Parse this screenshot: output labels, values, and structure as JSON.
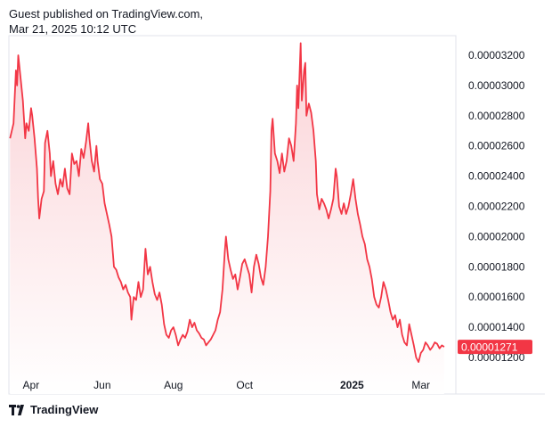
{
  "header": {
    "line1": "Guest published on TradingView.com,",
    "line2": "Mar 21, 2025 10:12 UTC"
  },
  "footer": {
    "brand": "TradingView"
  },
  "colors": {
    "line": "#f23645",
    "fill_top": "#fbd3d7",
    "fill_bottom": "#ffffff",
    "label_bg": "#f23645",
    "axis_text": "#131722"
  },
  "chart_data": {
    "type": "area",
    "title": "",
    "xlabel": "",
    "ylabel": "",
    "x_ticks": [
      {
        "label": "Apr",
        "x": "2024-04-01",
        "bold": false
      },
      {
        "label": "Jun",
        "x": "2024-06-01",
        "bold": false
      },
      {
        "label": "Aug",
        "x": "2024-08-01",
        "bold": false
      },
      {
        "label": "Oct",
        "x": "2024-10-01",
        "bold": false
      },
      {
        "label": "2025",
        "x": "2025-01-01",
        "bold": true
      },
      {
        "label": "Mar",
        "x": "2025-03-01",
        "bold": false
      }
    ],
    "y_ticks": [
      "0.00003200",
      "0.00003000",
      "0.00002800",
      "0.00002600",
      "0.00002400",
      "0.00002200",
      "0.00002000",
      "0.00001800",
      "0.00001600",
      "0.00001400",
      "0.00001200"
    ],
    "ylim": [
      1.12e-05,
      3.32e-05
    ],
    "xlim": [
      "2024-03-13",
      "2025-03-31"
    ],
    "last_value_label": "0.00001271",
    "series": [
      {
        "values": [
          [
            "2024-03-14",
            2.65e-05
          ],
          [
            "2024-03-17",
            2.75e-05
          ],
          [
            "2024-03-19",
            3.1e-05
          ],
          [
            "2024-03-20",
            3e-05
          ],
          [
            "2024-03-21",
            3.2e-05
          ],
          [
            "2024-03-23",
            3.05e-05
          ],
          [
            "2024-03-25",
            2.9e-05
          ],
          [
            "2024-03-27",
            2.65e-05
          ],
          [
            "2024-03-28",
            2.75e-05
          ],
          [
            "2024-03-30",
            2.7e-05
          ],
          [
            "2024-04-01",
            2.85e-05
          ],
          [
            "2024-04-02",
            2.8e-05
          ],
          [
            "2024-04-04",
            2.65e-05
          ],
          [
            "2024-04-06",
            2.45e-05
          ],
          [
            "2024-04-07",
            2.25e-05
          ],
          [
            "2024-04-08",
            2.12e-05
          ],
          [
            "2024-04-10",
            2.25e-05
          ],
          [
            "2024-04-12",
            2.3e-05
          ],
          [
            "2024-04-13",
            2.62e-05
          ],
          [
            "2024-04-15",
            2.7e-05
          ],
          [
            "2024-04-17",
            2.55e-05
          ],
          [
            "2024-04-18",
            2.4e-05
          ],
          [
            "2024-04-20",
            2.5e-05
          ],
          [
            "2024-04-22",
            2.35e-05
          ],
          [
            "2024-04-24",
            2.28e-05
          ],
          [
            "2024-04-26",
            2.38e-05
          ],
          [
            "2024-04-28",
            2.33e-05
          ],
          [
            "2024-04-30",
            2.45e-05
          ],
          [
            "2024-05-02",
            2.32e-05
          ],
          [
            "2024-05-04",
            2.28e-05
          ],
          [
            "2024-05-06",
            2.55e-05
          ],
          [
            "2024-05-08",
            2.48e-05
          ],
          [
            "2024-05-10",
            2.5e-05
          ],
          [
            "2024-05-12",
            2.4e-05
          ],
          [
            "2024-05-14",
            2.58e-05
          ],
          [
            "2024-05-16",
            2.52e-05
          ],
          [
            "2024-05-18",
            2.62e-05
          ],
          [
            "2024-05-20",
            2.75e-05
          ],
          [
            "2024-05-21",
            2.65e-05
          ],
          [
            "2024-05-23",
            2.5e-05
          ],
          [
            "2024-05-25",
            2.43e-05
          ],
          [
            "2024-05-27",
            2.6e-05
          ],
          [
            "2024-05-28",
            2.5e-05
          ],
          [
            "2024-05-30",
            2.38e-05
          ],
          [
            "2024-06-01",
            2.35e-05
          ],
          [
            "2024-06-03",
            2.22e-05
          ],
          [
            "2024-06-05",
            2.15e-05
          ],
          [
            "2024-06-07",
            2.08e-05
          ],
          [
            "2024-06-09",
            2e-05
          ],
          [
            "2024-06-11",
            1.8e-05
          ],
          [
            "2024-06-13",
            1.78e-05
          ],
          [
            "2024-06-15",
            1.73e-05
          ],
          [
            "2024-06-17",
            1.7e-05
          ],
          [
            "2024-06-19",
            1.65e-05
          ],
          [
            "2024-06-21",
            1.68e-05
          ],
          [
            "2024-06-23",
            1.63e-05
          ],
          [
            "2024-06-25",
            1.6e-05
          ],
          [
            "2024-06-26",
            1.45e-05
          ],
          [
            "2024-06-28",
            1.6e-05
          ],
          [
            "2024-06-30",
            1.58e-05
          ],
          [
            "2024-07-02",
            1.7e-05
          ],
          [
            "2024-07-04",
            1.6e-05
          ],
          [
            "2024-07-06",
            1.65e-05
          ],
          [
            "2024-07-08",
            1.92e-05
          ],
          [
            "2024-07-10",
            1.75e-05
          ],
          [
            "2024-07-12",
            1.8e-05
          ],
          [
            "2024-07-14",
            1.7e-05
          ],
          [
            "2024-07-16",
            1.62e-05
          ],
          [
            "2024-07-18",
            1.58e-05
          ],
          [
            "2024-07-20",
            1.63e-05
          ],
          [
            "2024-07-22",
            1.55e-05
          ],
          [
            "2024-07-24",
            1.42e-05
          ],
          [
            "2024-07-26",
            1.35e-05
          ],
          [
            "2024-07-28",
            1.33e-05
          ],
          [
            "2024-07-30",
            1.38e-05
          ],
          [
            "2024-08-01",
            1.4e-05
          ],
          [
            "2024-08-03",
            1.35e-05
          ],
          [
            "2024-08-05",
            1.28e-05
          ],
          [
            "2024-08-07",
            1.32e-05
          ],
          [
            "2024-08-09",
            1.35e-05
          ],
          [
            "2024-08-11",
            1.33e-05
          ],
          [
            "2024-08-13",
            1.37e-05
          ],
          [
            "2024-08-15",
            1.45e-05
          ],
          [
            "2024-08-17",
            1.4e-05
          ],
          [
            "2024-08-19",
            1.43e-05
          ],
          [
            "2024-08-21",
            1.38e-05
          ],
          [
            "2024-08-23",
            1.36e-05
          ],
          [
            "2024-08-25",
            1.33e-05
          ],
          [
            "2024-08-27",
            1.32e-05
          ],
          [
            "2024-08-29",
            1.28e-05
          ],
          [
            "2024-08-31",
            1.3e-05
          ],
          [
            "2024-09-02",
            1.32e-05
          ],
          [
            "2024-09-04",
            1.35e-05
          ],
          [
            "2024-09-06",
            1.38e-05
          ],
          [
            "2024-09-08",
            1.45e-05
          ],
          [
            "2024-09-10",
            1.5e-05
          ],
          [
            "2024-09-12",
            1.65e-05
          ],
          [
            "2024-09-14",
            1.9e-05
          ],
          [
            "2024-09-15",
            2e-05
          ],
          [
            "2024-09-17",
            1.85e-05
          ],
          [
            "2024-09-19",
            1.78e-05
          ],
          [
            "2024-09-21",
            1.72e-05
          ],
          [
            "2024-09-23",
            1.75e-05
          ],
          [
            "2024-09-25",
            1.65e-05
          ],
          [
            "2024-09-27",
            1.73e-05
          ],
          [
            "2024-09-29",
            1.82e-05
          ],
          [
            "2024-10-01",
            1.85e-05
          ],
          [
            "2024-10-03",
            1.8e-05
          ],
          [
            "2024-10-05",
            1.75e-05
          ],
          [
            "2024-10-07",
            1.63e-05
          ],
          [
            "2024-10-09",
            1.8e-05
          ],
          [
            "2024-10-11",
            1.88e-05
          ],
          [
            "2024-10-13",
            1.82e-05
          ],
          [
            "2024-10-15",
            1.73e-05
          ],
          [
            "2024-10-17",
            1.68e-05
          ],
          [
            "2024-10-19",
            1.8e-05
          ],
          [
            "2024-10-21",
            2e-05
          ],
          [
            "2024-10-23",
            2.3e-05
          ],
          [
            "2024-10-24",
            2.7e-05
          ],
          [
            "2024-10-25",
            2.78e-05
          ],
          [
            "2024-10-27",
            2.55e-05
          ],
          [
            "2024-10-29",
            2.5e-05
          ],
          [
            "2024-10-31",
            2.42e-05
          ],
          [
            "2024-11-02",
            2.55e-05
          ],
          [
            "2024-11-04",
            2.43e-05
          ],
          [
            "2024-11-06",
            2.5e-05
          ],
          [
            "2024-11-08",
            2.65e-05
          ],
          [
            "2024-11-10",
            2.6e-05
          ],
          [
            "2024-11-12",
            2.5e-05
          ],
          [
            "2024-11-14",
            2.75e-05
          ],
          [
            "2024-11-15",
            3e-05
          ],
          [
            "2024-11-16",
            2.85e-05
          ],
          [
            "2024-11-18",
            3.28e-05
          ],
          [
            "2024-11-19",
            2.9e-05
          ],
          [
            "2024-11-21",
            3.1e-05
          ],
          [
            "2024-11-22",
            3.15e-05
          ],
          [
            "2024-11-23",
            2.8e-05
          ],
          [
            "2024-11-25",
            2.88e-05
          ],
          [
            "2024-11-27",
            2.82e-05
          ],
          [
            "2024-11-29",
            2.7e-05
          ],
          [
            "2024-12-01",
            2.5e-05
          ],
          [
            "2024-12-02",
            2.28e-05
          ],
          [
            "2024-12-04",
            2.18e-05
          ],
          [
            "2024-12-06",
            2.25e-05
          ],
          [
            "2024-12-08",
            2.22e-05
          ],
          [
            "2024-12-10",
            2.18e-05
          ],
          [
            "2024-12-12",
            2.12e-05
          ],
          [
            "2024-12-14",
            2.18e-05
          ],
          [
            "2024-12-16",
            2.25e-05
          ],
          [
            "2024-12-18",
            2.45e-05
          ],
          [
            "2024-12-19",
            2.4e-05
          ],
          [
            "2024-12-21",
            2.2e-05
          ],
          [
            "2024-12-23",
            2.15e-05
          ],
          [
            "2024-12-25",
            2.22e-05
          ],
          [
            "2024-12-27",
            2.15e-05
          ],
          [
            "2024-12-29",
            2.2e-05
          ],
          [
            "2024-12-31",
            2.28e-05
          ],
          [
            "2025-01-02",
            2.38e-05
          ],
          [
            "2025-01-04",
            2.25e-05
          ],
          [
            "2025-01-06",
            2.15e-05
          ],
          [
            "2025-01-08",
            2.08e-05
          ],
          [
            "2025-01-10",
            2e-05
          ],
          [
            "2025-01-12",
            1.95e-05
          ],
          [
            "2025-01-14",
            1.85e-05
          ],
          [
            "2025-01-16",
            1.8e-05
          ],
          [
            "2025-01-18",
            1.72e-05
          ],
          [
            "2025-01-20",
            1.6e-05
          ],
          [
            "2025-01-22",
            1.55e-05
          ],
          [
            "2025-01-24",
            1.53e-05
          ],
          [
            "2025-01-26",
            1.6e-05
          ],
          [
            "2025-01-28",
            1.7e-05
          ],
          [
            "2025-01-30",
            1.65e-05
          ],
          [
            "2025-02-01",
            1.58e-05
          ],
          [
            "2025-02-03",
            1.5e-05
          ],
          [
            "2025-02-05",
            1.45e-05
          ],
          [
            "2025-02-07",
            1.48e-05
          ],
          [
            "2025-02-09",
            1.4e-05
          ],
          [
            "2025-02-11",
            1.45e-05
          ],
          [
            "2025-02-13",
            1.35e-05
          ],
          [
            "2025-02-15",
            1.3e-05
          ],
          [
            "2025-02-17",
            1.28e-05
          ],
          [
            "2025-02-19",
            1.42e-05
          ],
          [
            "2025-02-21",
            1.35e-05
          ],
          [
            "2025-02-23",
            1.28e-05
          ],
          [
            "2025-02-25",
            1.2e-05
          ],
          [
            "2025-02-27",
            1.17e-05
          ],
          [
            "2025-03-01",
            1.23e-05
          ],
          [
            "2025-03-03",
            1.25e-05
          ],
          [
            "2025-03-05",
            1.3e-05
          ],
          [
            "2025-03-07",
            1.28e-05
          ],
          [
            "2025-03-09",
            1.25e-05
          ],
          [
            "2025-03-11",
            1.27e-05
          ],
          [
            "2025-03-13",
            1.3e-05
          ],
          [
            "2025-03-15",
            1.29e-05
          ],
          [
            "2025-03-17",
            1.26e-05
          ],
          [
            "2025-03-19",
            1.28e-05
          ],
          [
            "2025-03-21",
            1.27e-05
          ]
        ]
      }
    ]
  }
}
